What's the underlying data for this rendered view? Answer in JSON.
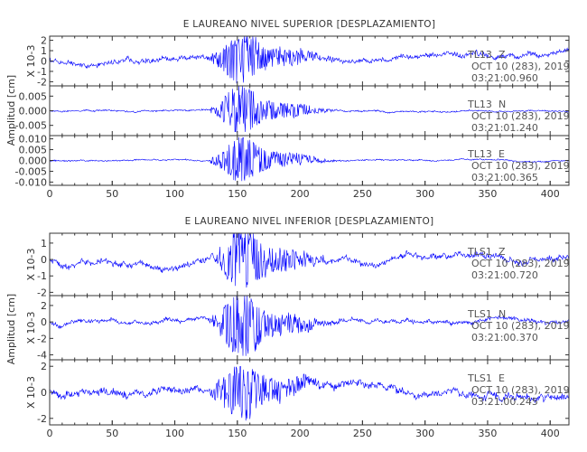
{
  "colors": {
    "trace": "#0000ff",
    "axis": "#333333",
    "annotation": "#555555",
    "background": "#ffffff"
  },
  "chart_data": [
    {
      "type": "line",
      "title": "E LAUREANO NIVEL SUPERIOR [DESPLAZAMIENTO]",
      "ylabel": "Amplitud [cm]",
      "xlim": [
        0,
        415
      ],
      "xticks": [
        "0",
        "50",
        "100",
        "150",
        "200",
        "250",
        "300",
        "350",
        "400"
      ],
      "panels": [
        {
          "station": "TL13",
          "component": "Z",
          "date": "OCT 10 (283), 2019",
          "time": "03:21:00.960",
          "unit": "X 10-3",
          "ylim": [
            -2.4,
            2.4
          ],
          "yticks": [
            "2",
            "1",
            "0",
            "-1",
            "-2"
          ],
          "base": 0.25,
          "noise": 0.45,
          "burst": 2.2,
          "seed": 11
        },
        {
          "station": "TL13",
          "component": "N",
          "date": "OCT 10 (283), 2019",
          "time": "03:21:01.240",
          "unit": "",
          "ylim": [
            -0.0085,
            0.0085
          ],
          "yticks": [
            "0.005",
            "0.000",
            "-0.005"
          ],
          "base": 0.0,
          "noise": 0.0005,
          "burst": 0.0075,
          "seed": 23
        },
        {
          "station": "TL13",
          "component": "E",
          "date": "OCT 10 (283), 2019",
          "time": "03:21:00.365",
          "unit": "",
          "ylim": [
            -0.0115,
            0.0115
          ],
          "yticks": [
            "0.010",
            "0.005",
            "0.000",
            "-0.005",
            "-0.010"
          ],
          "base": 0.0,
          "noise": 0.0006,
          "burst": 0.0095,
          "seed": 37
        }
      ]
    },
    {
      "type": "line",
      "title": "E LAUREANO NIVEL INFERIOR [DESPLAZAMIENTO]",
      "ylabel": "Amplitud [cm]",
      "xlim": [
        0,
        415
      ],
      "xticks": [
        "0",
        "50",
        "100",
        "150",
        "200",
        "250",
        "300",
        "350",
        "400"
      ],
      "panels": [
        {
          "station": "TLS1",
          "component": "Z",
          "date": "OCT 10 (283), 2019",
          "time": "03:21:00.720",
          "unit": "X 10-3",
          "ylim": [
            -2.2,
            1.6
          ],
          "yticks": [
            "1",
            "0",
            "-1",
            "-2"
          ],
          "base": -0.05,
          "noise": 0.35,
          "burst": 1.8,
          "seed": 51
        },
        {
          "station": "TLS1",
          "component": "N",
          "date": "OCT 10 (283), 2019",
          "time": "03:21:00.370",
          "unit": "X 10-3",
          "ylim": [
            -4.6,
            3.2
          ],
          "yticks": [
            "2",
            "0",
            "-2",
            "-4"
          ],
          "base": 0.0,
          "noise": 0.45,
          "burst": 3.6,
          "seed": 67
        },
        {
          "station": "TLS1",
          "component": "E",
          "date": "OCT 10 (283), 2019",
          "time": "03:21:00.245",
          "unit": "X 10-3",
          "ylim": [
            -2.5,
            2.5
          ],
          "yticks": [
            "2",
            "0",
            "-2"
          ],
          "base": 0.1,
          "noise": 0.55,
          "burst": 2.0,
          "seed": 79
        }
      ]
    }
  ]
}
